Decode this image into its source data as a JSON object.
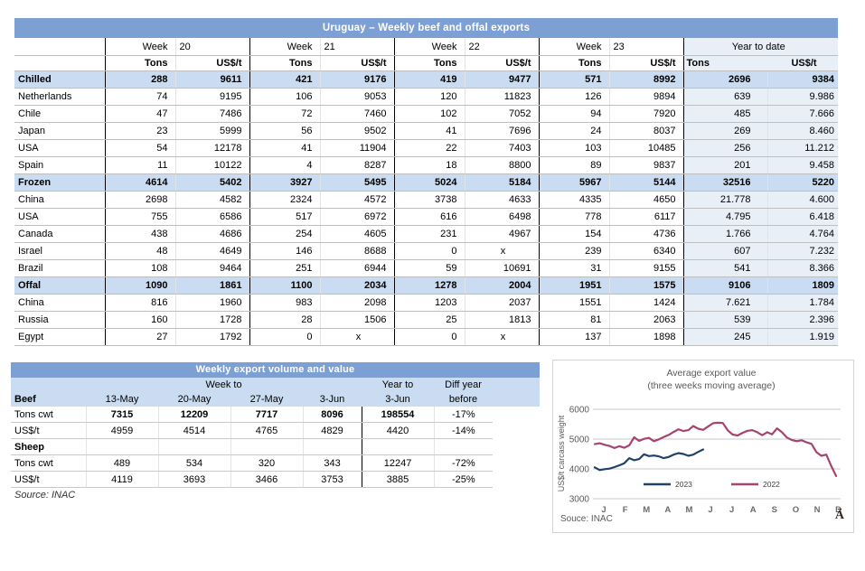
{
  "colors": {
    "title_bar": "#7CA0D4",
    "section_row": "#C9DCF1",
    "ytd_column": "#E9EFF7",
    "series_2023": "#1F4266",
    "series_2022": "#A64470",
    "grid_line": "#BFBFBF",
    "chart_text": "#595959"
  },
  "main_table": {
    "title": "Uruguay – Weekly beef and offal exports",
    "week_label": "Week",
    "weeks": [
      "20",
      "21",
      "22",
      "23"
    ],
    "ytd_label": "Year to date",
    "tons_label": "Tons",
    "price_label": "US$/t",
    "rows": [
      {
        "label": "Chilled",
        "type": "section",
        "cells": [
          "288",
          "9611",
          "421",
          "9176",
          "419",
          "9477",
          "571",
          "8992",
          "2696",
          "9384"
        ]
      },
      {
        "label": "Netherlands",
        "type": "data",
        "cells": [
          "74",
          "9195",
          "106",
          "9053",
          "120",
          "11823",
          "126",
          "9894",
          "639",
          "9.986"
        ]
      },
      {
        "label": "Chile",
        "type": "data",
        "cells": [
          "47",
          "7486",
          "72",
          "7460",
          "102",
          "7052",
          "94",
          "7920",
          "485",
          "7.666"
        ]
      },
      {
        "label": "Japan",
        "type": "data",
        "cells": [
          "23",
          "5999",
          "56",
          "9502",
          "41",
          "7696",
          "24",
          "8037",
          "269",
          "8.460"
        ]
      },
      {
        "label": "USA",
        "type": "data",
        "cells": [
          "54",
          "12178",
          "41",
          "11904",
          "22",
          "7403",
          "103",
          "10485",
          "256",
          "11.212"
        ]
      },
      {
        "label": "Spain",
        "type": "data",
        "cells": [
          "11",
          "10122",
          "4",
          "8287",
          "18",
          "8800",
          "89",
          "9837",
          "201",
          "9.458"
        ]
      },
      {
        "label": "Frozen",
        "type": "section",
        "cells": [
          "4614",
          "5402",
          "3927",
          "5495",
          "5024",
          "5184",
          "5967",
          "5144",
          "32516",
          "5220"
        ]
      },
      {
        "label": "China",
        "type": "data",
        "cells": [
          "2698",
          "4582",
          "2324",
          "4572",
          "3738",
          "4633",
          "4335",
          "4650",
          "21.778",
          "4.600"
        ]
      },
      {
        "label": "USA",
        "type": "data",
        "cells": [
          "755",
          "6586",
          "517",
          "6972",
          "616",
          "6498",
          "778",
          "6117",
          "4.795",
          "6.418"
        ]
      },
      {
        "label": "Canada",
        "type": "data",
        "cells": [
          "438",
          "4686",
          "254",
          "4605",
          "231",
          "4967",
          "154",
          "4736",
          "1.766",
          "4.764"
        ]
      },
      {
        "label": "Israel",
        "type": "data",
        "cells": [
          "48",
          "4649",
          "146",
          "8688",
          "0",
          "x",
          "239",
          "6340",
          "607",
          "7.232"
        ]
      },
      {
        "label": "Brazil",
        "type": "data",
        "cells": [
          "108",
          "9464",
          "251",
          "6944",
          "59",
          "10691",
          "31",
          "9155",
          "541",
          "8.366"
        ]
      },
      {
        "label": "Offal",
        "type": "section",
        "cells": [
          "1090",
          "1861",
          "1100",
          "2034",
          "1278",
          "2004",
          "1951",
          "1575",
          "9106",
          "1809"
        ]
      },
      {
        "label": "China",
        "type": "data",
        "cells": [
          "816",
          "1960",
          "983",
          "2098",
          "1203",
          "2037",
          "1551",
          "1424",
          "7.621",
          "1.784"
        ]
      },
      {
        "label": "Russia",
        "type": "data",
        "cells": [
          "160",
          "1728",
          "28",
          "1506",
          "25",
          "1813",
          "81",
          "2063",
          "539",
          "2.396"
        ]
      },
      {
        "label": "Egypt",
        "type": "data",
        "cells": [
          "27",
          "1792",
          "0",
          "x",
          "0",
          "x",
          "137",
          "1898",
          "245",
          "1.919"
        ]
      }
    ]
  },
  "bottom_table": {
    "title": "Weekly export volume and value",
    "week_to_label": "Week to",
    "year_to_label": "Year to",
    "diff_label_line1": "Diff year",
    "diff_label_line2": "before",
    "beef_label": "Beef",
    "dates": [
      "13-May",
      "20-May",
      "27-May",
      "3-Jun"
    ],
    "year_date": "3-Jun",
    "rows": [
      {
        "label": "Tons cwt",
        "bold_values": true,
        "cells": [
          "7315",
          "12209",
          "7717",
          "8096",
          "198554",
          "-17%"
        ]
      },
      {
        "label": "US$/t",
        "bold_values": false,
        "cells": [
          "4959",
          "4514",
          "4765",
          "4829",
          "4420",
          "-14%"
        ]
      },
      {
        "label": "Sheep",
        "bold_values": false,
        "section": true,
        "cells": [
          "",
          "",
          "",
          "",
          "",
          ""
        ]
      },
      {
        "label": "Tons cwt",
        "bold_values": false,
        "cells": [
          "489",
          "534",
          "320",
          "343",
          "12247",
          "-72%"
        ]
      },
      {
        "label": "US$/t",
        "bold_values": false,
        "cells": [
          "4119",
          "3693",
          "3466",
          "3753",
          "3885",
          "-25%"
        ]
      }
    ],
    "source": "Source: INAC"
  },
  "chart_data": {
    "type": "line",
    "title": "Average export value",
    "subtitle": "(three weeks moving average)",
    "ylabel": "US$/t carcass weight",
    "yticks": [
      3000,
      4000,
      5000,
      6000
    ],
    "ylim": [
      3000,
      6000
    ],
    "grid": true,
    "legend_position": "inside-bottom",
    "x_months": [
      "J",
      "F",
      "M",
      "A",
      "M",
      "J",
      "J",
      "A",
      "S",
      "O",
      "N",
      "D"
    ],
    "x_unit": "week of year",
    "series": [
      {
        "name": "2023",
        "color": "#1F4266",
        "values": [
          4050,
          3960,
          3990,
          4010,
          4060,
          4120,
          4190,
          4360,
          4290,
          4330,
          4490,
          4430,
          4450,
          4420,
          4360,
          4400,
          4480,
          4530,
          4500,
          4440,
          4480,
          4570,
          4650
        ]
      },
      {
        "name": "2022",
        "color": "#A64470",
        "values": [
          4830,
          4860,
          4810,
          4770,
          4700,
          4760,
          4710,
          4790,
          5060,
          4940,
          5010,
          5040,
          4930,
          4990,
          5070,
          5140,
          5240,
          5330,
          5270,
          5300,
          5440,
          5350,
          5310,
          5420,
          5530,
          5550,
          5540,
          5290,
          5150,
          5120,
          5210,
          5280,
          5300,
          5230,
          5130,
          5230,
          5160,
          5360,
          5230,
          5050,
          4970,
          4930,
          4960,
          4890,
          4840,
          4560,
          4440,
          4480,
          4100,
          3760
        ]
      }
    ],
    "source": "Souce: INAC",
    "watermark": "Ā"
  }
}
